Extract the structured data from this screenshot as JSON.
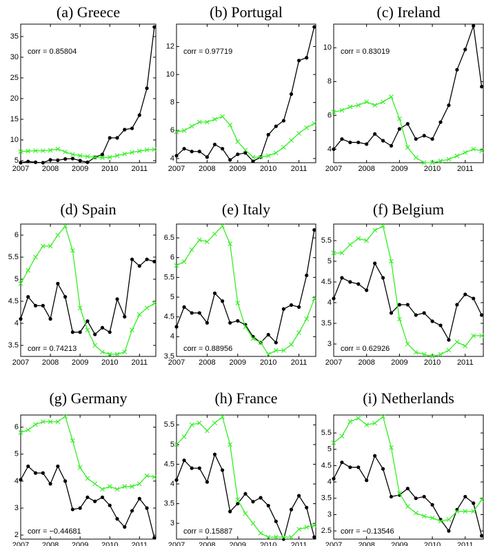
{
  "chart_data": [
    {
      "type": "line",
      "title": "(a) Greece",
      "annotation": "corr = 0.85804",
      "x": [
        2007,
        2007.25,
        2007.5,
        2007.75,
        2008,
        2008.25,
        2008.5,
        2008.75,
        2009,
        2009.25,
        2009.5,
        2009.75,
        2010,
        2010.25,
        2010.5,
        2010.75,
        2011,
        2011.25,
        2011.5
      ],
      "xlim": [
        2007,
        2011.55
      ],
      "xticks": [
        2007,
        2008,
        2009,
        2010,
        2011
      ],
      "ylim": [
        4.5,
        38
      ],
      "yticks": [
        5,
        10,
        15,
        20,
        25,
        30,
        35
      ],
      "series": [
        {
          "color": "#000000",
          "marker": "o",
          "values": [
            4.5,
            4.8,
            4.6,
            4.5,
            5.2,
            5.1,
            5.4,
            5.5,
            5.0,
            4.6,
            5.8,
            6.5,
            10.5,
            10.5,
            12.5,
            12.8,
            16.0,
            22.5,
            37.3
          ]
        },
        {
          "color": "#33ee22",
          "marker": "x",
          "values": [
            7.2,
            7.3,
            7.4,
            7.4,
            7.5,
            7.8,
            7.1,
            6.5,
            6.2,
            6.0,
            5.8,
            5.7,
            5.8,
            6.2,
            6.6,
            7.0,
            7.3,
            7.6,
            7.7
          ]
        }
      ]
    },
    {
      "type": "line",
      "title": "(b) Portugal",
      "annotation": "corr = 0.97719",
      "x": [
        2007,
        2007.25,
        2007.5,
        2007.75,
        2008,
        2008.25,
        2008.5,
        2008.75,
        2009,
        2009.25,
        2009.5,
        2009.75,
        2010,
        2010.25,
        2010.5,
        2010.75,
        2011,
        2011.25,
        2011.5
      ],
      "xlim": [
        2007,
        2011.55
      ],
      "xticks": [
        2007,
        2008,
        2009,
        2010,
        2011
      ],
      "ylim": [
        3.7,
        13.6
      ],
      "yticks": [
        4,
        6,
        8,
        10,
        12
      ],
      "series": [
        {
          "color": "#000000",
          "marker": "o",
          "values": [
            4.2,
            4.7,
            4.5,
            4.5,
            4.1,
            5.0,
            4.7,
            3.9,
            4.3,
            4.4,
            3.8,
            4.1,
            5.7,
            6.3,
            6.7,
            8.6,
            11.0,
            11.2,
            13.4
          ]
        },
        {
          "color": "#33ee22",
          "marker": "x",
          "values": [
            5.9,
            6.0,
            6.3,
            6.6,
            6.6,
            6.8,
            7.0,
            6.4,
            5.2,
            4.6,
            4.1,
            4.1,
            4.2,
            4.4,
            4.8,
            5.3,
            5.8,
            6.2,
            6.5
          ]
        }
      ]
    },
    {
      "type": "line",
      "title": "(c) Ireland",
      "annotation": "corr = 0.83019",
      "x": [
        2007,
        2007.25,
        2007.5,
        2007.75,
        2008,
        2008.25,
        2008.5,
        2008.75,
        2009,
        2009.25,
        2009.5,
        2009.75,
        2010,
        2010.25,
        2010.5,
        2010.75,
        2011,
        2011.25,
        2011.5
      ],
      "xlim": [
        2007,
        2011.55
      ],
      "xticks": [
        2007,
        2008,
        2009,
        2010,
        2011
      ],
      "ylim": [
        3.2,
        11.4
      ],
      "yticks": [
        4,
        6,
        8,
        10
      ],
      "series": [
        {
          "color": "#000000",
          "marker": "o",
          "values": [
            4.0,
            4.6,
            4.4,
            4.4,
            4.3,
            4.9,
            4.5,
            4.2,
            5.2,
            5.5,
            4.6,
            4.8,
            4.6,
            5.6,
            6.6,
            8.7,
            9.9,
            11.3,
            7.7
          ]
        },
        {
          "color": "#33ee22",
          "marker": "x",
          "values": [
            6.2,
            6.3,
            6.5,
            6.6,
            6.8,
            6.6,
            6.8,
            7.1,
            5.8,
            4.1,
            3.5,
            3.2,
            3.2,
            3.3,
            3.4,
            3.6,
            3.8,
            4.0,
            3.9
          ]
        }
      ]
    },
    {
      "type": "line",
      "title": "(d) Spain",
      "annotation": "corr = 0.74213",
      "x": [
        2007,
        2007.25,
        2007.5,
        2007.75,
        2008,
        2008.25,
        2008.5,
        2008.75,
        2009,
        2009.25,
        2009.5,
        2009.75,
        2010,
        2010.25,
        2010.5,
        2010.75,
        2011,
        2011.25,
        2011.5
      ],
      "xlim": [
        2007,
        2011.55
      ],
      "xticks": [
        2007,
        2008,
        2009,
        2010,
        2011
      ],
      "ylim": [
        3.25,
        6.25
      ],
      "yticks": [
        3.5,
        4,
        4.5,
        5,
        5.5,
        6
      ],
      "series": [
        {
          "color": "#000000",
          "marker": "o",
          "values": [
            4.1,
            4.6,
            4.4,
            4.4,
            4.1,
            4.9,
            4.6,
            3.8,
            3.8,
            4.05,
            3.75,
            3.9,
            3.8,
            4.55,
            4.15,
            5.45,
            5.3,
            5.45,
            5.4
          ]
        },
        {
          "color": "#33ee22",
          "marker": "x",
          "values": [
            4.9,
            5.2,
            5.5,
            5.75,
            5.75,
            6.0,
            6.2,
            5.65,
            4.35,
            3.85,
            3.5,
            3.35,
            3.3,
            3.3,
            3.35,
            3.85,
            4.2,
            4.35,
            4.45
          ]
        }
      ]
    },
    {
      "type": "line",
      "title": "(e) Italy",
      "annotation": "corr = 0.88956",
      "x": [
        2007,
        2007.25,
        2007.5,
        2007.75,
        2008,
        2008.25,
        2008.5,
        2008.75,
        2009,
        2009.25,
        2009.5,
        2009.75,
        2010,
        2010.25,
        2010.5,
        2010.75,
        2011,
        2011.25,
        2011.5
      ],
      "xlim": [
        2007,
        2011.55
      ],
      "xticks": [
        2007,
        2008,
        2009,
        2010,
        2011
      ],
      "ylim": [
        3.5,
        6.85
      ],
      "yticks": [
        3.5,
        4,
        4.5,
        5,
        5.5,
        6,
        6.5
      ],
      "series": [
        {
          "color": "#000000",
          "marker": "o",
          "values": [
            4.25,
            4.75,
            4.6,
            4.6,
            4.35,
            5.1,
            4.9,
            4.35,
            4.4,
            4.3,
            4.0,
            3.85,
            4.05,
            3.85,
            4.7,
            4.8,
            4.75,
            5.55,
            6.7
          ]
        },
        {
          "color": "#33ee22",
          "marker": "x",
          "values": [
            5.8,
            5.9,
            6.2,
            6.45,
            6.4,
            6.6,
            6.8,
            6.35,
            4.85,
            4.25,
            3.95,
            3.85,
            3.55,
            3.65,
            3.65,
            3.8,
            4.1,
            4.45,
            4.95
          ]
        }
      ]
    },
    {
      "type": "line",
      "title": "(f) Belgium",
      "annotation": "corr = 0.62926",
      "x": [
        2007,
        2007.25,
        2007.5,
        2007.75,
        2008,
        2008.25,
        2008.5,
        2008.75,
        2009,
        2009.25,
        2009.5,
        2009.75,
        2010,
        2010.25,
        2010.5,
        2010.75,
        2011,
        2011.25,
        2011.5
      ],
      "xlim": [
        2007,
        2011.55
      ],
      "xticks": [
        2007,
        2008,
        2009,
        2010,
        2011
      ],
      "ylim": [
        2.7,
        5.9
      ],
      "yticks": [
        3,
        3.5,
        4,
        4.5,
        5,
        5.5
      ],
      "series": [
        {
          "color": "#000000",
          "marker": "o",
          "values": [
            4.1,
            4.6,
            4.5,
            4.45,
            4.3,
            4.95,
            4.6,
            3.75,
            3.95,
            3.95,
            3.7,
            3.75,
            3.55,
            3.45,
            3.1,
            3.95,
            4.2,
            4.1,
            3.7
          ]
        },
        {
          "color": "#33ee22",
          "marker": "x",
          "values": [
            5.2,
            5.2,
            5.4,
            5.55,
            5.5,
            5.75,
            5.85,
            5.0,
            3.6,
            3.0,
            2.8,
            2.75,
            2.7,
            2.75,
            2.85,
            3.05,
            2.95,
            3.2,
            3.2
          ]
        }
      ]
    },
    {
      "type": "line",
      "title": "(g) Germany",
      "annotation": "corr = −0.44681",
      "x": [
        2007,
        2007.25,
        2007.5,
        2007.75,
        2008,
        2008.25,
        2008.5,
        2008.75,
        2009,
        2009.25,
        2009.5,
        2009.75,
        2010,
        2010.25,
        2010.5,
        2010.75,
        2011,
        2011.25,
        2011.5
      ],
      "xlim": [
        2007,
        2011.55
      ],
      "xticks": [
        2007,
        2008,
        2009,
        2010,
        2011
      ],
      "ylim": [
        1.85,
        6.45
      ],
      "yticks": [
        2,
        3,
        4,
        5,
        6
      ],
      "series": [
        {
          "color": "#000000",
          "marker": "o",
          "values": [
            4.05,
            4.55,
            4.3,
            4.3,
            3.9,
            4.55,
            4.0,
            2.95,
            3.0,
            3.4,
            3.25,
            3.4,
            3.1,
            2.6,
            2.3,
            2.9,
            3.35,
            3.0,
            1.9
          ]
        },
        {
          "color": "#33ee22",
          "marker": "x",
          "values": [
            5.8,
            5.9,
            6.1,
            6.2,
            6.2,
            6.2,
            6.4,
            5.5,
            4.5,
            4.1,
            3.9,
            3.7,
            3.8,
            3.7,
            3.8,
            3.8,
            3.9,
            4.2,
            4.15
          ]
        }
      ]
    },
    {
      "type": "line",
      "title": "(h) France",
      "annotation": "corr = 0.15887",
      "x": [
        2007,
        2007.25,
        2007.5,
        2007.75,
        2008,
        2008.25,
        2008.5,
        2008.75,
        2009,
        2009.25,
        2009.5,
        2009.75,
        2010,
        2010.25,
        2010.5,
        2010.75,
        2011,
        2011.25,
        2011.5
      ],
      "xlim": [
        2007,
        2011.55
      ],
      "xticks": [
        2007,
        2008,
        2009,
        2010,
        2011
      ],
      "ylim": [
        2.6,
        5.75
      ],
      "yticks": [
        3,
        3.5,
        4,
        4.5,
        5,
        5.5
      ],
      "series": [
        {
          "color": "#000000",
          "marker": "o",
          "values": [
            4.1,
            4.6,
            4.4,
            4.4,
            4.05,
            4.75,
            4.35,
            3.3,
            3.5,
            3.75,
            3.55,
            3.65,
            3.45,
            3.05,
            2.6,
            3.35,
            3.7,
            3.4,
            2.65
          ]
        },
        {
          "color": "#33ee22",
          "marker": "x",
          "values": [
            5.0,
            5.2,
            5.5,
            5.55,
            5.35,
            5.55,
            5.7,
            5.0,
            3.6,
            3.25,
            3.0,
            2.75,
            2.65,
            2.65,
            2.65,
            2.65,
            2.85,
            2.9,
            2.95
          ]
        }
      ]
    },
    {
      "type": "line",
      "title": "(i) Netherlands",
      "annotation": "corr = −0.13546",
      "x": [
        2007,
        2007.25,
        2007.5,
        2007.75,
        2008,
        2008.25,
        2008.5,
        2008.75,
        2009,
        2009.25,
        2009.5,
        2009.75,
        2010,
        2010.25,
        2010.5,
        2010.75,
        2011,
        2011.25,
        2011.5
      ],
      "xlim": [
        2007,
        2011.55
      ],
      "xticks": [
        2007,
        2008,
        2009,
        2010,
        2011
      ],
      "ylim": [
        2.25,
        6.05
      ],
      "yticks": [
        2.5,
        3,
        3.5,
        4,
        4.5,
        5,
        5.5
      ],
      "series": [
        {
          "color": "#000000",
          "marker": "o",
          "values": [
            4.1,
            4.6,
            4.45,
            4.45,
            4.05,
            4.8,
            4.4,
            3.55,
            3.6,
            3.8,
            3.5,
            3.55,
            3.3,
            2.85,
            2.5,
            3.15,
            3.55,
            3.35,
            2.35
          ]
        },
        {
          "color": "#33ee22",
          "marker": "x",
          "values": [
            5.2,
            5.4,
            5.85,
            5.95,
            5.75,
            5.8,
            6.0,
            5.05,
            3.65,
            3.25,
            3.05,
            2.95,
            2.9,
            2.8,
            2.85,
            3.1,
            3.1,
            3.1,
            3.45
          ]
        }
      ]
    }
  ]
}
